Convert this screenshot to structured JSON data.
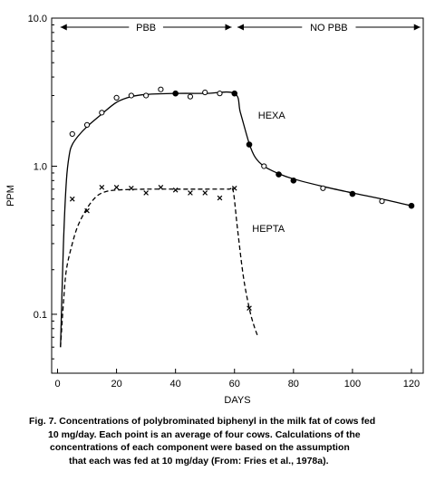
{
  "chart_data": {
    "type": "line",
    "xlabel": "DAYS",
    "ylabel": "PPM",
    "yscale": "log",
    "xlim": [
      -2,
      124
    ],
    "ylim": [
      0.04,
      10
    ],
    "x_ticks": [
      0,
      20,
      40,
      60,
      80,
      100,
      120
    ],
    "x_tick_labels": [
      "0",
      "20",
      "40",
      "60",
      "80",
      "100",
      "120"
    ],
    "y_ticks": [
      0.1,
      1.0,
      10.0
    ],
    "y_tick_labels": [
      "0.1",
      "1.0",
      "10.0"
    ],
    "grid": false,
    "phases": [
      {
        "label": "PBB",
        "x_start": 1,
        "x_end": 59
      },
      {
        "label": "NO PBB",
        "x_start": 61,
        "x_end": 123
      }
    ],
    "series": [
      {
        "name": "HEXA",
        "color": "#000000",
        "line_style": "solid",
        "points": [
          {
            "x": 5,
            "y": 1.65,
            "marker": "open"
          },
          {
            "x": 10,
            "y": 1.9,
            "marker": "open"
          },
          {
            "x": 15,
            "y": 2.3,
            "marker": "open"
          },
          {
            "x": 20,
            "y": 2.9,
            "marker": "open"
          },
          {
            "x": 25,
            "y": 3.0,
            "marker": "open"
          },
          {
            "x": 30,
            "y": 3.0,
            "marker": "open"
          },
          {
            "x": 35,
            "y": 3.3,
            "marker": "open"
          },
          {
            "x": 40,
            "y": 3.1,
            "marker": "filled"
          },
          {
            "x": 45,
            "y": 2.95,
            "marker": "open"
          },
          {
            "x": 50,
            "y": 3.15,
            "marker": "open"
          },
          {
            "x": 55,
            "y": 3.1,
            "marker": "open"
          },
          {
            "x": 60,
            "y": 3.1,
            "marker": "filled"
          },
          {
            "x": 65,
            "y": 1.4,
            "marker": "filled"
          },
          {
            "x": 70,
            "y": 1.0,
            "marker": "open"
          },
          {
            "x": 75,
            "y": 0.88,
            "marker": "filled"
          },
          {
            "x": 80,
            "y": 0.8,
            "marker": "filled"
          },
          {
            "x": 90,
            "y": 0.71,
            "marker": "open"
          },
          {
            "x": 100,
            "y": 0.65,
            "marker": "filled"
          },
          {
            "x": 110,
            "y": 0.58,
            "marker": "open"
          },
          {
            "x": 120,
            "y": 0.54,
            "marker": "filled"
          }
        ],
        "curve": [
          [
            1,
            0.06
          ],
          [
            2,
            0.3
          ],
          [
            3,
            0.8
          ],
          [
            4,
            1.2
          ],
          [
            5,
            1.4
          ],
          [
            7,
            1.6
          ],
          [
            10,
            1.85
          ],
          [
            15,
            2.25
          ],
          [
            20,
            2.7
          ],
          [
            25,
            2.95
          ],
          [
            30,
            3.05
          ],
          [
            40,
            3.1
          ],
          [
            50,
            3.1
          ],
          [
            60,
            3.1
          ],
          [
            62,
            2.3
          ],
          [
            65,
            1.42
          ],
          [
            67,
            1.15
          ],
          [
            70,
            1.0
          ],
          [
            75,
            0.89
          ],
          [
            80,
            0.82
          ],
          [
            90,
            0.73
          ],
          [
            100,
            0.66
          ],
          [
            110,
            0.6
          ],
          [
            120,
            0.54
          ]
        ],
        "label": {
          "text": "HEXA",
          "x": 68,
          "y": 2.1
        }
      },
      {
        "name": "HEPTA",
        "color": "#000000",
        "line_style": "dashed",
        "points": [
          {
            "x": 5,
            "y": 0.6,
            "marker": "x"
          },
          {
            "x": 10,
            "y": 0.5,
            "marker": "x"
          },
          {
            "x": 15,
            "y": 0.72,
            "marker": "x"
          },
          {
            "x": 20,
            "y": 0.72,
            "marker": "x"
          },
          {
            "x": 25,
            "y": 0.71,
            "marker": "x"
          },
          {
            "x": 30,
            "y": 0.66,
            "marker": "x"
          },
          {
            "x": 35,
            "y": 0.72,
            "marker": "x"
          },
          {
            "x": 40,
            "y": 0.69,
            "marker": "x"
          },
          {
            "x": 45,
            "y": 0.66,
            "marker": "x"
          },
          {
            "x": 50,
            "y": 0.66,
            "marker": "x"
          },
          {
            "x": 55,
            "y": 0.61,
            "marker": "x"
          },
          {
            "x": 60,
            "y": 0.71,
            "marker": "x"
          },
          {
            "x": 65,
            "y": 0.11,
            "marker": "x"
          }
        ],
        "curve": [
          [
            1,
            0.06
          ],
          [
            2,
            0.12
          ],
          [
            3,
            0.2
          ],
          [
            5,
            0.3
          ],
          [
            7,
            0.4
          ],
          [
            10,
            0.52
          ],
          [
            13,
            0.62
          ],
          [
            16,
            0.67
          ],
          [
            20,
            0.69
          ],
          [
            30,
            0.7
          ],
          [
            40,
            0.7
          ],
          [
            50,
            0.7
          ],
          [
            58,
            0.7
          ],
          [
            59.5,
            0.69
          ],
          [
            61,
            0.38
          ],
          [
            63,
            0.18
          ],
          [
            65,
            0.11
          ],
          [
            66.5,
            0.085
          ],
          [
            68,
            0.07
          ]
        ],
        "label": {
          "text": "HEPTA",
          "x": 66,
          "y": 0.36
        }
      }
    ]
  },
  "caption": {
    "lines": [
      "Fig. 7.  Concentrations of polybrominated biphenyl in the milk fat of cows fed",
      "10 mg/day.  Each point is an average of four cows.  Calculations of the",
      "concentrations of each component were based on the assumption",
      "that each was fed at 10 mg/day  (From:  Fries et al., 1978a)."
    ]
  }
}
